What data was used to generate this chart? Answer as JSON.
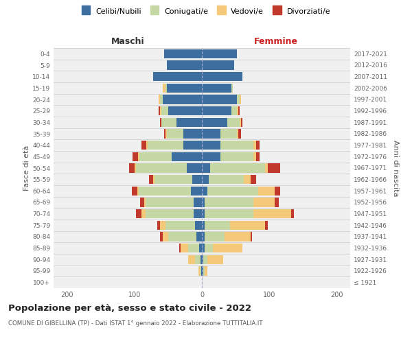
{
  "age_groups": [
    "100+",
    "95-99",
    "90-94",
    "85-89",
    "80-84",
    "75-79",
    "70-74",
    "65-69",
    "60-64",
    "55-59",
    "50-54",
    "45-49",
    "40-44",
    "35-39",
    "30-34",
    "25-29",
    "20-24",
    "15-19",
    "10-14",
    "5-9",
    "0-4"
  ],
  "birth_years": [
    "≤ 1921",
    "1922-1926",
    "1927-1931",
    "1932-1936",
    "1937-1941",
    "1942-1946",
    "1947-1951",
    "1952-1956",
    "1957-1961",
    "1962-1966",
    "1967-1971",
    "1972-1976",
    "1977-1981",
    "1982-1986",
    "1987-1991",
    "1992-1996",
    "1997-2001",
    "2002-2006",
    "2007-2011",
    "2012-2016",
    "2017-2021"
  ],
  "maschi": {
    "celibi": [
      0,
      1,
      2,
      4,
      8,
      10,
      12,
      12,
      16,
      14,
      22,
      45,
      28,
      28,
      38,
      50,
      58,
      52,
      72,
      52,
      56
    ],
    "coniugati": [
      0,
      2,
      8,
      16,
      42,
      44,
      72,
      72,
      78,
      56,
      76,
      48,
      52,
      24,
      22,
      10,
      4,
      2,
      0,
      0,
      0
    ],
    "vedovi": [
      0,
      2,
      10,
      12,
      8,
      8,
      6,
      2,
      2,
      2,
      2,
      2,
      2,
      2,
      0,
      2,
      2,
      4,
      0,
      0,
      0
    ],
    "divorziati": [
      0,
      0,
      0,
      2,
      4,
      4,
      8,
      6,
      8,
      6,
      8,
      8,
      8,
      2,
      2,
      2,
      0,
      0,
      0,
      0,
      0
    ]
  },
  "femmine": {
    "nubili": [
      0,
      2,
      2,
      4,
      4,
      4,
      4,
      4,
      8,
      10,
      12,
      28,
      28,
      28,
      38,
      44,
      52,
      44,
      60,
      48,
      52
    ],
    "coniugate": [
      0,
      2,
      6,
      12,
      30,
      38,
      72,
      72,
      76,
      52,
      82,
      48,
      48,
      24,
      18,
      8,
      4,
      2,
      0,
      0,
      0
    ],
    "vedove": [
      0,
      4,
      24,
      44,
      38,
      52,
      56,
      32,
      24,
      10,
      4,
      4,
      4,
      2,
      2,
      2,
      2,
      0,
      0,
      0,
      0
    ],
    "divorziate": [
      0,
      0,
      0,
      0,
      2,
      4,
      4,
      6,
      8,
      8,
      18,
      6,
      6,
      4,
      2,
      2,
      0,
      0,
      0,
      0,
      0
    ]
  },
  "colors": {
    "celibi": "#3d6ea0",
    "coniugati": "#c5d8a4",
    "vedovi": "#f5c97a",
    "divorziati": "#c0392b"
  },
  "title": "Popolazione per età, sesso e stato civile - 2022",
  "subtitle": "COMUNE DI GIBELLINA (TP) - Dati ISTAT 1° gennaio 2022 - Elaborazione TUTTITALIA.IT",
  "xlabel_left": "Maschi",
  "xlabel_right": "Femmine",
  "ylabel_left": "Fasce di età",
  "ylabel_right": "Anni di nascita",
  "xlim": 220,
  "legend_labels": [
    "Celibi/Nubili",
    "Coniugati/e",
    "Vedovi/e",
    "Divorziati/e"
  ],
  "bg_color": "#f0f0f0"
}
